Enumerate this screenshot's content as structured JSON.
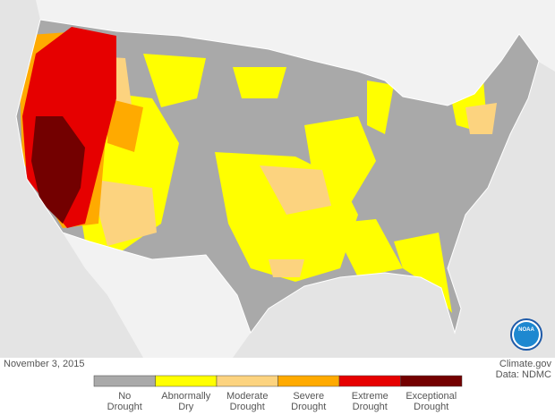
{
  "date": "November 3, 2015",
  "credits": [
    "Climate.gov",
    "Data: NDMC"
  ],
  "logo": "NOAA",
  "legend": {
    "items": [
      {
        "color": "#a9a9a9",
        "label": [
          "No",
          "Drought"
        ]
      },
      {
        "color": "#ffff00",
        "label": [
          "Abnormally",
          "Dry"
        ]
      },
      {
        "color": "#fcd37f",
        "label": [
          "Moderate",
          "Drought"
        ]
      },
      {
        "color": "#ffaa00",
        "label": [
          "Severe",
          "Drought"
        ]
      },
      {
        "color": "#e60000",
        "label": [
          "Extreme",
          "Drought"
        ]
      },
      {
        "color": "#730000",
        "label": [
          "Exceptional",
          "Drought"
        ]
      }
    ]
  }
}
